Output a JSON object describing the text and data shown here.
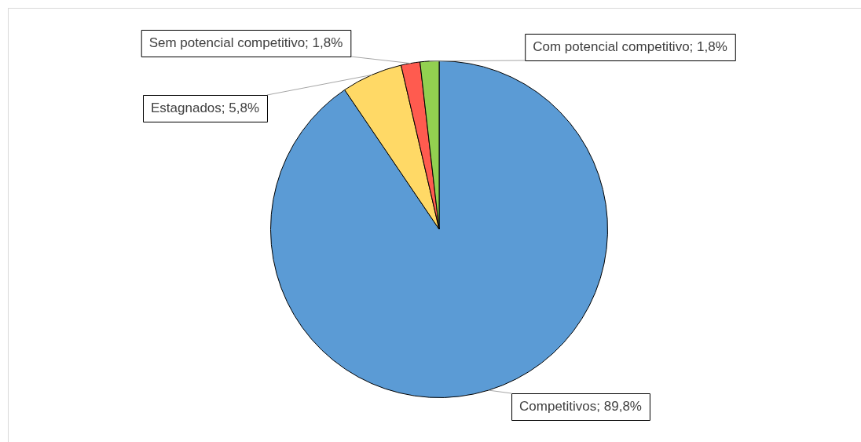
{
  "chart_data": {
    "type": "pie",
    "categories": [
      "Competitivos",
      "Estagnados",
      "Sem potencial competitivo",
      "Com potencial competitivo"
    ],
    "values": [
      89.8,
      5.8,
      1.8,
      1.8
    ],
    "colors": [
      "#5b9bd5",
      "#ffd966",
      "#ff5b4f",
      "#92d050"
    ],
    "value_labels": [
      "89,8%",
      "5,8%",
      "1,8%",
      "1,8%"
    ],
    "legend": false
  }
}
